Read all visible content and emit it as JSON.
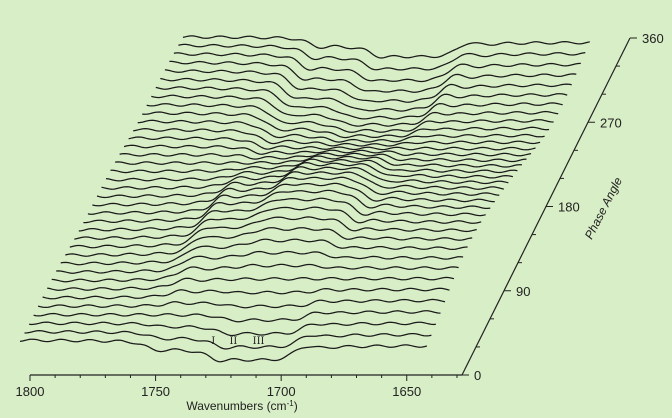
{
  "chart_data": {
    "type": "waterfall-line",
    "xlabel": "Wavenumbers (cm",
    "xlabel_sup": "-1",
    "xlabel_end": ")",
    "ylabel": "Phase Angle",
    "x_ticks": [
      1800,
      1750,
      1700,
      1650
    ],
    "xlim": [
      1800,
      1628
    ],
    "phase_ticks": [
      0,
      90,
      180,
      270,
      360
    ],
    "phase_range": [
      0,
      360
    ],
    "trace_count": 37,
    "band_labels": [
      {
        "label": "I",
        "wavenumber": 1727
      },
      {
        "label": "II",
        "wavenumber": 1719
      },
      {
        "label": "III",
        "wavenumber": 1709
      }
    ],
    "bands": [
      {
        "center": 1737,
        "width": 5,
        "amplitude": 22,
        "peak_phase": 120
      },
      {
        "center": 1712,
        "width": 5,
        "amplitude": 14,
        "peak_phase": 150
      },
      {
        "center": 1678,
        "width": 5,
        "amplitude": 20,
        "peak_phase": 330
      }
    ],
    "line_color": "#1a1a1a",
    "background_color": "#d8eec6"
  }
}
